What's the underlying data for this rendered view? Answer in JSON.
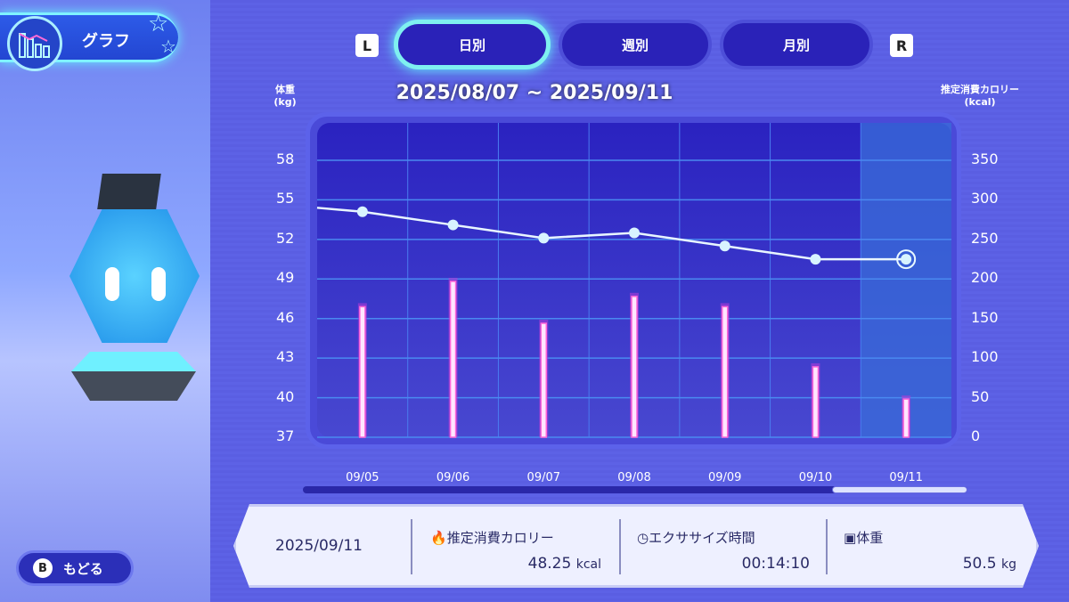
{
  "header": {
    "title": "グラフ",
    "icon": "graph-icon"
  },
  "tabs": [
    {
      "label": "日別",
      "active": true
    },
    {
      "label": "週別",
      "active": false
    },
    {
      "label": "月別",
      "active": false
    }
  ],
  "keys": {
    "left": "L",
    "right": "R",
    "back": "B"
  },
  "back_label": "もどる",
  "date_range": "2025/08/07 ~ 2025/09/11",
  "axes": {
    "left_title": "体重",
    "left_unit": "(kg)",
    "right_title": "推定消費カロリー",
    "right_unit": "(kcal)"
  },
  "chart_data": {
    "type": "bar+line",
    "categories": [
      "09/05",
      "09/06",
      "09/07",
      "09/08",
      "09/09",
      "09/10",
      "09/11"
    ],
    "series": [
      {
        "axis": "right",
        "type": "bar",
        "values": [
          165,
          197,
          144,
          178,
          165,
          89,
          48.25
        ]
      },
      {
        "axis": "left",
        "type": "line",
        "values": [
          54.1,
          53.1,
          52.1,
          52.5,
          51.5,
          50.5,
          50.5
        ],
        "prior_value": 54.4
      }
    ],
    "left_ticks": [
      58,
      55,
      52,
      49,
      46,
      43,
      40,
      37
    ],
    "right_ticks": [
      350,
      300,
      250,
      200,
      150,
      100,
      50,
      0
    ],
    "left_range": [
      37,
      58
    ],
    "right_range": [
      0,
      350
    ],
    "selected": "09/11",
    "grid": true,
    "colors": {
      "bar": "#ff66d8",
      "line": "#e8f6ff",
      "plot": "#3030c8",
      "selected": "#3a6ad8"
    }
  },
  "detail": {
    "date": "2025/09/11",
    "calories": {
      "label": "推定消費カロリー",
      "value": "48.25",
      "unit": "kcal",
      "icon": "flame-icon"
    },
    "exercise": {
      "label": "エクササイズ時間",
      "value": "00:14:10",
      "icon": "clock-icon"
    },
    "weight": {
      "label": "体重",
      "value": "50.5",
      "unit": "kg",
      "icon": "scale-icon"
    }
  }
}
